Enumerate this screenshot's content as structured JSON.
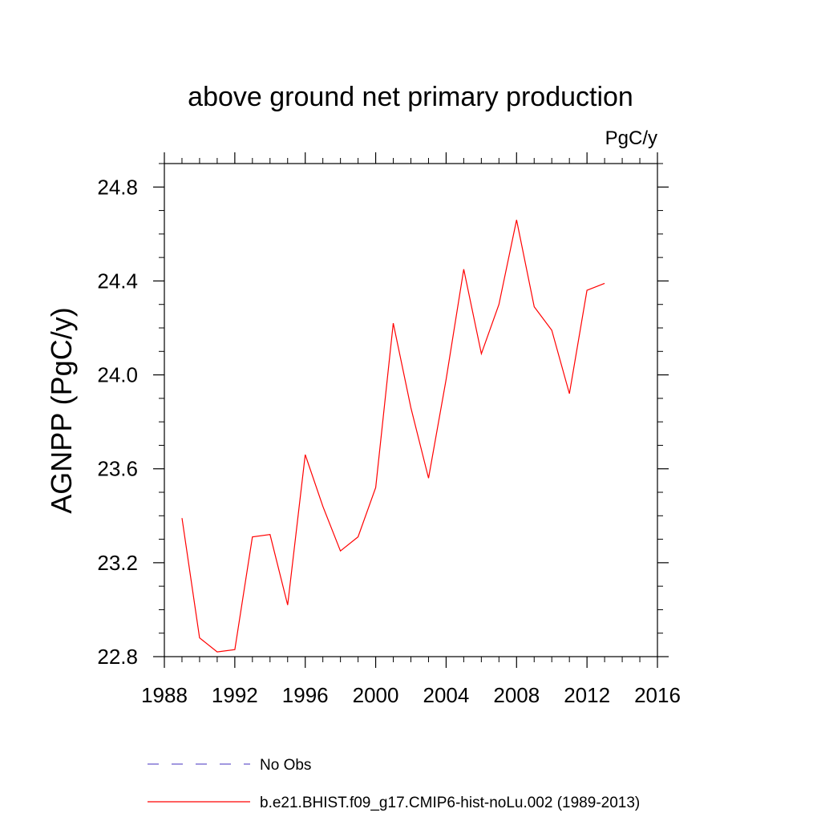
{
  "chart_data": {
    "type": "line",
    "title": "above ground net primary production",
    "units": "PgC/y",
    "xlabel": "",
    "ylabel": "AGNPP  (PgC/y)",
    "xlim": [
      1988,
      2016
    ],
    "ylim": [
      22.8,
      24.9
    ],
    "x_ticks": [
      1988,
      1992,
      1996,
      2000,
      2004,
      2008,
      2012,
      2016
    ],
    "y_ticks": [
      "22.8",
      "23.2",
      "23.6",
      "24.0",
      "24.4",
      "24.8"
    ],
    "grid": false,
    "series": [
      {
        "name": "b.e21.BHIST.f09_g17.CMIP6-hist-noLu.002 (1989-2013)",
        "color": "#ff0000",
        "x": [
          1989,
          1990,
          1991,
          1992,
          1993,
          1994,
          1995,
          1996,
          1997,
          1998,
          1999,
          2000,
          2001,
          2002,
          2003,
          2004,
          2005,
          2006,
          2007,
          2008,
          2009,
          2010,
          2011,
          2012,
          2013
        ],
        "values": [
          23.39,
          22.88,
          22.82,
          22.83,
          23.31,
          23.32,
          23.02,
          23.66,
          23.44,
          23.25,
          23.31,
          23.52,
          24.22,
          23.86,
          23.56,
          23.98,
          24.45,
          24.09,
          24.3,
          24.66,
          24.29,
          24.19,
          23.92,
          24.36,
          24.39
        ]
      }
    ],
    "legend": {
      "position": "bottom",
      "entries": [
        {
          "label": "No Obs",
          "color": "#6a5acd",
          "style": "dashed"
        },
        {
          "label": "b.e21.BHIST.f09_g17.CMIP6-hist-noLu.002 (1989-2013)",
          "color": "#ff0000",
          "style": "solid"
        }
      ]
    }
  }
}
